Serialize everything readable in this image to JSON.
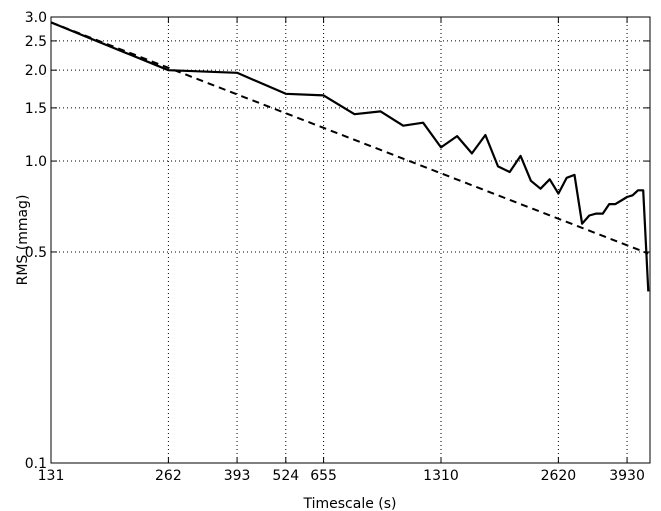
{
  "chart_data": {
    "type": "line",
    "xlabel": "Timescale (s)",
    "ylabel": "RMS (mmag)",
    "x_scale": "log",
    "y_scale": "log",
    "xlim": [
      131,
      4500
    ],
    "ylim": [
      0.1,
      3.0
    ],
    "grid": true,
    "x_ticks": [
      {
        "value": 131,
        "label": "131"
      },
      {
        "value": 262,
        "label": "262"
      },
      {
        "value": 393,
        "label": "393"
      },
      {
        "value": 524,
        "label": "524"
      },
      {
        "value": 655,
        "label": "655"
      },
      {
        "value": 1310,
        "label": "1310"
      },
      {
        "value": 2620,
        "label": "2620"
      },
      {
        "value": 3930,
        "label": "3930"
      }
    ],
    "y_ticks": [
      {
        "value": 0.1,
        "label": "0.1"
      },
      {
        "value": 0.5,
        "label": "0.5"
      },
      {
        "value": 1.0,
        "label": "1.0"
      },
      {
        "value": 1.5,
        "label": "1.5"
      },
      {
        "value": 2.0,
        "label": "2.0"
      },
      {
        "value": 2.5,
        "label": "2.5"
      },
      {
        "value": 3.0,
        "label": "3.0"
      }
    ],
    "series": [
      {
        "style": "solid",
        "x": [
          131,
          262,
          393,
          524,
          655,
          786,
          917,
          1048,
          1179,
          1310,
          1441,
          1572,
          1703,
          1834,
          1965,
          2096,
          2227,
          2358,
          2489,
          2620,
          2751,
          2882,
          3013,
          3144,
          3275,
          3406,
          3537,
          3668,
          3799,
          3930,
          4061,
          4192,
          4323,
          4454
        ],
        "y": [
          2.88,
          2.0,
          1.96,
          1.67,
          1.65,
          1.43,
          1.46,
          1.31,
          1.34,
          1.11,
          1.21,
          1.06,
          1.22,
          0.96,
          0.92,
          1.04,
          0.86,
          0.81,
          0.87,
          0.78,
          0.88,
          0.9,
          0.62,
          0.66,
          0.67,
          0.67,
          0.72,
          0.72,
          0.74,
          0.76,
          0.77,
          0.8,
          0.8,
          0.37
        ]
      },
      {
        "style": "dashed",
        "x": [
          131,
          4454
        ],
        "y": [
          2.88,
          0.494
        ]
      }
    ]
  }
}
